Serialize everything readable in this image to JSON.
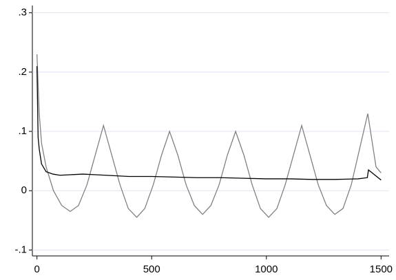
{
  "chart_data": {
    "type": "line",
    "xlim": [
      -20,
      1535
    ],
    "ylim": [
      -0.11,
      0.31
    ],
    "xticks": [
      0,
      500,
      1000,
      1500
    ],
    "yticks": [
      {
        "value": 0.3,
        "label": ".3"
      },
      {
        "value": 0.2,
        "label": ".2"
      },
      {
        "value": 0.1,
        "label": ".1"
      },
      {
        "value": 0,
        "label": "0"
      },
      {
        "value": -0.1,
        "label": "-.1"
      }
    ],
    "grid": true,
    "series": [
      {
        "color": "#808080",
        "x": [
          0,
          10,
          20,
          40,
          72,
          108,
          145,
          181,
          218,
          254,
          290,
          326,
          362,
          398,
          435,
          470,
          507,
          543,
          578,
          614,
          650,
          686,
          722,
          758,
          794,
          830,
          866,
          902,
          938,
          974,
          1010,
          1046,
          1082,
          1118,
          1154,
          1190,
          1226,
          1262,
          1298,
          1334,
          1370,
          1406,
          1442,
          1478,
          1500
        ],
        "values": [
          0.23,
          0.13,
          0.08,
          0.04,
          0.0,
          -0.025,
          -0.035,
          -0.025,
          0.01,
          0.06,
          0.11,
          0.06,
          0.01,
          -0.03,
          -0.045,
          -0.03,
          0.01,
          0.06,
          0.1,
          0.06,
          0.01,
          -0.025,
          -0.04,
          -0.025,
          0.01,
          0.06,
          0.1,
          0.06,
          0.01,
          -0.03,
          -0.045,
          -0.03,
          0.01,
          0.06,
          0.11,
          0.06,
          0.01,
          -0.025,
          -0.04,
          -0.03,
          0.01,
          0.07,
          0.13,
          0.04,
          0.03
        ]
      },
      {
        "color": "#000000",
        "x": [
          0,
          5,
          10,
          20,
          40,
          70,
          100,
          200,
          300,
          400,
          500,
          600,
          700,
          800,
          900,
          1000,
          1100,
          1200,
          1300,
          1400,
          1440,
          1445,
          1500
        ],
        "values": [
          0.21,
          0.09,
          0.07,
          0.045,
          0.032,
          0.028,
          0.026,
          0.028,
          0.026,
          0.024,
          0.024,
          0.023,
          0.022,
          0.022,
          0.021,
          0.02,
          0.02,
          0.019,
          0.019,
          0.02,
          0.022,
          0.035,
          0.018
        ]
      }
    ]
  }
}
